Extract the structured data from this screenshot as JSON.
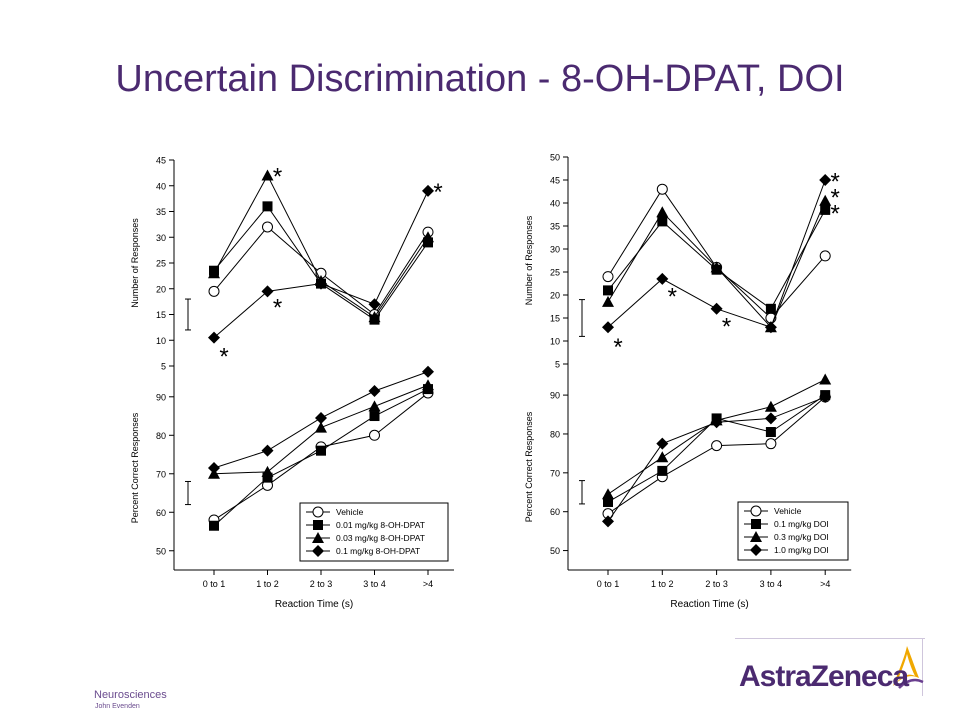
{
  "slide": {
    "title": "Uncertain Discrimination - 8-OH-DPAT, DOI",
    "footer_dept": "Neurosciences",
    "footer_author": "John Evenden",
    "logo_text": "AstraZeneca",
    "accent_color": "#4b2a70"
  },
  "chart_data": [
    {
      "type": "line",
      "panel": "top-left",
      "ylabel": "Number of Responses",
      "ylim": [
        5,
        45
      ],
      "yticks": [
        5,
        10,
        15,
        20,
        25,
        30,
        35,
        40,
        45
      ],
      "categories": [
        "0 to 1",
        "1 to 2",
        "2 to 3",
        "3 to 4",
        ">4"
      ],
      "series": [
        {
          "name": "Vehicle",
          "marker": "circle-open",
          "values": [
            19.5,
            32,
            23,
            15,
            31
          ]
        },
        {
          "name": "0.01 mg/kg 8-OH-DPAT",
          "marker": "square",
          "values": [
            23.5,
            36,
            21,
            14,
            29
          ]
        },
        {
          "name": "0.03 mg/kg 8-OH-DPAT",
          "marker": "triangle",
          "values": [
            23,
            42,
            21.5,
            14.5,
            30
          ]
        },
        {
          "name": "0.1 mg/kg 8-OH-DPAT",
          "marker": "diamond",
          "values": [
            10.5,
            19.5,
            21,
            17,
            39
          ]
        }
      ],
      "annotations": [
        {
          "text": "*",
          "category_index": 1,
          "y": 43
        },
        {
          "text": "*",
          "category_index": 4,
          "y": 40
        },
        {
          "text": "*",
          "category_index": 1,
          "y": 17.5
        },
        {
          "text": "*",
          "category_index": 0,
          "y": 8
        }
      ],
      "error_bar": {
        "low": 12,
        "high": 18
      }
    },
    {
      "type": "line",
      "panel": "top-right",
      "ylabel": "Number of Responses",
      "ylim": [
        5,
        50
      ],
      "yticks": [
        5,
        10,
        15,
        20,
        25,
        30,
        35,
        40,
        45,
        50
      ],
      "categories": [
        "0 to 1",
        "1 to 2",
        "2 to 3",
        "3 to 4",
        ">4"
      ],
      "series": [
        {
          "name": "Vehicle",
          "marker": "circle-open",
          "values": [
            24,
            43,
            26,
            15,
            28.5
          ]
        },
        {
          "name": "0.1 mg/kg DOI",
          "marker": "square",
          "values": [
            21,
            36,
            25.5,
            17,
            38.5
          ]
        },
        {
          "name": "0.3 mg/kg DOI",
          "marker": "triangle",
          "values": [
            18.5,
            38,
            26,
            13,
            40.5
          ]
        },
        {
          "name": "1.0 mg/kg DOI",
          "marker": "diamond",
          "values": [
            13,
            23.5,
            17,
            13,
            45
          ]
        }
      ],
      "annotations": [
        {
          "text": "*",
          "category_index": 4,
          "y": 46
        },
        {
          "text": "*",
          "category_index": 4,
          "y": 42.5
        },
        {
          "text": "*",
          "category_index": 4,
          "y": 39
        },
        {
          "text": "*",
          "category_index": 1,
          "y": 21
        },
        {
          "text": "*",
          "category_index": 2,
          "y": 14.5
        },
        {
          "text": "*",
          "category_index": 0,
          "y": 10
        }
      ],
      "error_bar": {
        "low": 11,
        "high": 19
      }
    },
    {
      "type": "line",
      "panel": "bottom-left",
      "ylabel": "Percent Correct Responses",
      "xlabel": "Reaction Time (s)",
      "ylim": [
        45,
        98
      ],
      "yticks": [
        50,
        60,
        70,
        80,
        90
      ],
      "categories": [
        "0 to 1",
        "1 to 2",
        "2 to 3",
        "3 to 4",
        ">4"
      ],
      "series": [
        {
          "name": "Vehicle",
          "marker": "circle-open",
          "values": [
            58,
            67,
            77,
            80,
            91
          ]
        },
        {
          "name": "0.01 mg/kg 8-OH-DPAT",
          "marker": "square",
          "values": [
            56.5,
            69,
            76,
            85,
            92
          ]
        },
        {
          "name": "0.03 mg/kg 8-OH-DPAT",
          "marker": "triangle",
          "values": [
            70,
            70.5,
            82,
            87.5,
            93
          ]
        },
        {
          "name": "0.1 mg/kg 8-OH-DPAT",
          "marker": "diamond",
          "values": [
            71.5,
            76,
            84.5,
            91.5,
            96.5
          ]
        }
      ],
      "annotations": [
        {
          "text": "*",
          "category_index": 4,
          "y": 53
        },
        {
          "text": "*",
          "category_index": 4,
          "y": 49.5
        }
      ],
      "legend_placement": "bottom-right",
      "error_bar": {
        "low": 62,
        "high": 68
      }
    },
    {
      "type": "line",
      "panel": "bottom-right",
      "ylabel": "Percent Correct Responses",
      "xlabel": "Reaction Time (s)",
      "ylim": [
        45,
        98
      ],
      "yticks": [
        50,
        60,
        70,
        80,
        90
      ],
      "categories": [
        "0 to 1",
        "1 to 2",
        "2 to 3",
        "3 to 4",
        ">4"
      ],
      "series": [
        {
          "name": "Vehicle",
          "marker": "circle-open",
          "values": [
            59.5,
            69,
            77,
            77.5,
            89.5
          ]
        },
        {
          "name": "0.1 mg/kg DOI",
          "marker": "square",
          "values": [
            62.5,
            70.5,
            84,
            80.5,
            90
          ]
        },
        {
          "name": "0.3 mg/kg DOI",
          "marker": "triangle",
          "values": [
            64.5,
            74,
            83.5,
            87,
            94
          ]
        },
        {
          "name": "1.0 mg/kg DOI",
          "marker": "diamond",
          "values": [
            57.5,
            77.5,
            83,
            84,
            89.5
          ]
        }
      ],
      "legend_placement": "bottom-right",
      "error_bar": {
        "low": 62,
        "high": 68
      }
    }
  ]
}
